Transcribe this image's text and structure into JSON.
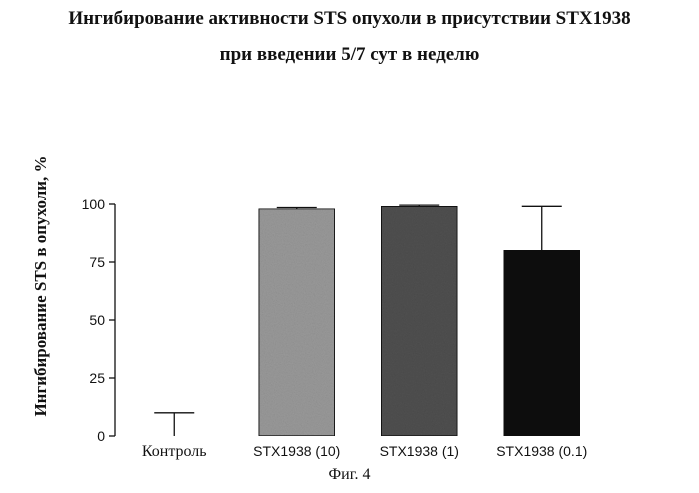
{
  "chart_data": {
    "type": "bar",
    "title": "Ингибирование активности STS опухоли в присутствии STX1938",
    "subtitle": "при введении 5/7 сут в неделю",
    "xlabel": "",
    "ylabel": "Ингибирование STS в опухоли, %",
    "ylim": [
      0,
      100
    ],
    "yticks": [
      0,
      25,
      50,
      75,
      100
    ],
    "categories": [
      "Контроль",
      "STX1938 (10)",
      "STX1938 (1)",
      "STX1938 (0.1)"
    ],
    "values": [
      0,
      98,
      99,
      80
    ],
    "error_upper": [
      10,
      0.5,
      0.5,
      19
    ],
    "bar_colors": [
      "#ffffff",
      "#9a9a9a",
      "#505050",
      "#111111"
    ],
    "grid": false,
    "caption": "Фиг. 4"
  }
}
